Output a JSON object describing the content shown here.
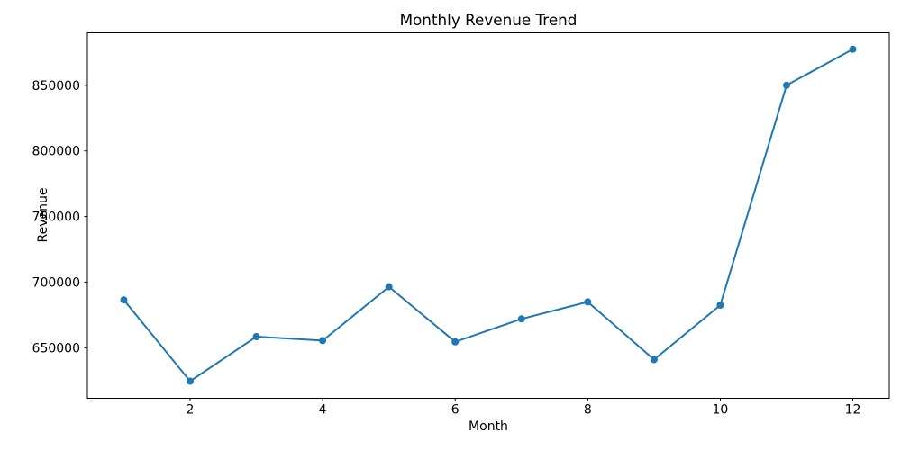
{
  "chart_data": {
    "type": "line",
    "title": "Monthly Revenue Trend",
    "xlabel": "Month",
    "ylabel": "Revenue",
    "x": [
      1,
      2,
      3,
      4,
      5,
      6,
      7,
      8,
      9,
      10,
      11,
      12
    ],
    "series": [
      {
        "name": "Revenue",
        "values": [
          686500,
          624500,
          658500,
          655500,
          696500,
          654500,
          672000,
          685000,
          641000,
          682500,
          850000,
          877500
        ]
      }
    ],
    "xticks": [
      2,
      4,
      6,
      8,
      10,
      12
    ],
    "yticks": [
      650000,
      700000,
      750000,
      800000,
      850000
    ],
    "xlim": [
      0.45,
      12.55
    ],
    "ylim": [
      611500,
      890000
    ],
    "grid": false,
    "legend": false,
    "line_color": "#1f77b4",
    "marker": "circle",
    "marker_color": "#1f77b4",
    "axis_color": "#000000",
    "background": "#ffffff"
  }
}
